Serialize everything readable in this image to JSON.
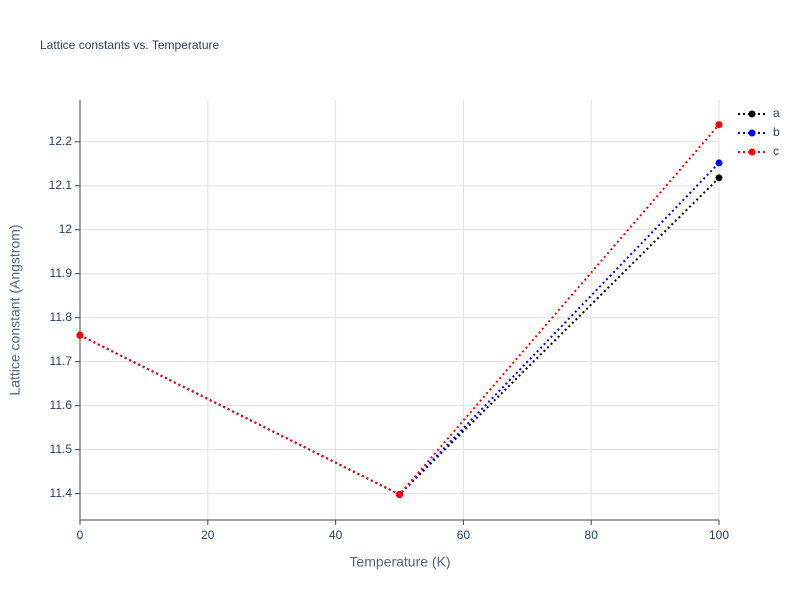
{
  "chart_data": {
    "type": "line",
    "title": "Lattice constants vs. Temperature",
    "xlabel": "Temperature (K)",
    "ylabel": "Lattice constant (Angstrom)",
    "x": [
      0,
      50,
      100
    ],
    "series": [
      {
        "name": "a",
        "color": "#000000",
        "values": [
          11.76,
          11.398,
          12.118
        ]
      },
      {
        "name": "b",
        "color": "#0000ff",
        "values": [
          11.76,
          11.398,
          12.152
        ]
      },
      {
        "name": "c",
        "color": "#ff0000",
        "values": [
          11.76,
          11.398,
          12.239
        ]
      }
    ],
    "xlim": [
      0,
      100
    ],
    "xticks": [
      0,
      20,
      40,
      60,
      80,
      100
    ],
    "ylim": [
      11.34,
      12.295
    ],
    "yticks": [
      11.4,
      11.5,
      11.6,
      11.7,
      11.8,
      11.9,
      12,
      12.1,
      12.2
    ],
    "grid": true,
    "legend": "top-right"
  }
}
